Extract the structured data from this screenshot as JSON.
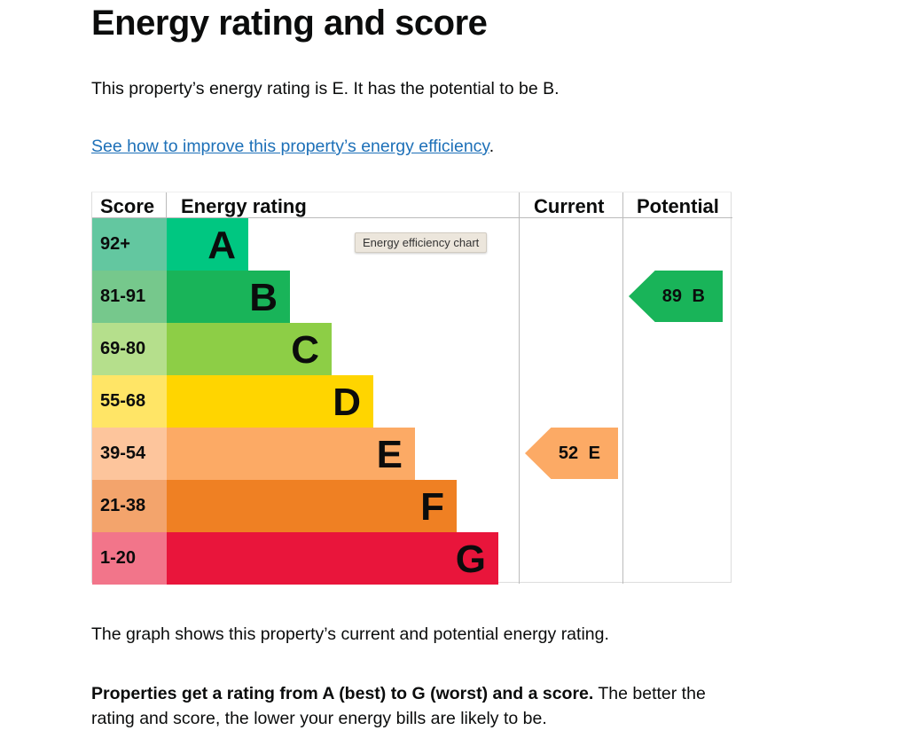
{
  "page": {
    "title": "Energy rating and score",
    "summary": "This property’s energy rating is E. It has the potential to be B.",
    "improve_link": "See how to improve this property’s energy efficiency",
    "improve_link_suffix": ".",
    "graph_caption": "The graph shows this property’s current and potential energy rating.",
    "rating_note_bold": "Properties get a rating from A (best) to G (worst) and a score.",
    "rating_note_rest": " The better the rating and score, the lower your energy bills are likely to be."
  },
  "chart": {
    "headers": {
      "score": "Score",
      "rating": "Energy rating",
      "current": "Current",
      "potential": "Potential"
    },
    "bands": [
      {
        "score": "92+",
        "letter": "A",
        "score_color": "#63c7a0",
        "bar_color": "#00c781"
      },
      {
        "score": "81-91",
        "letter": "B",
        "score_color": "#76c88c",
        "bar_color": "#19b459"
      },
      {
        "score": "69-80",
        "letter": "C",
        "score_color": "#b5df8c",
        "bar_color": "#8dce46"
      },
      {
        "score": "55-68",
        "letter": "D",
        "score_color": "#ffe566",
        "bar_color": "#ffd500"
      },
      {
        "score": "39-54",
        "letter": "E",
        "score_color": "#fdc59c",
        "bar_color": "#fcaa65"
      },
      {
        "score": "21-38",
        "letter": "F",
        "score_color": "#f3a46c",
        "bar_color": "#ef8023"
      },
      {
        "score": "1-20",
        "letter": "G",
        "score_color": "#f2758a",
        "bar_color": "#e9153b"
      }
    ],
    "current": {
      "label": "52 E",
      "score": 52,
      "band": "E",
      "color": "#fcaa65"
    },
    "potential": {
      "label": "89 B",
      "score": 89,
      "band": "B",
      "color": "#19b459"
    },
    "tooltip": "Energy efficiency chart"
  }
}
